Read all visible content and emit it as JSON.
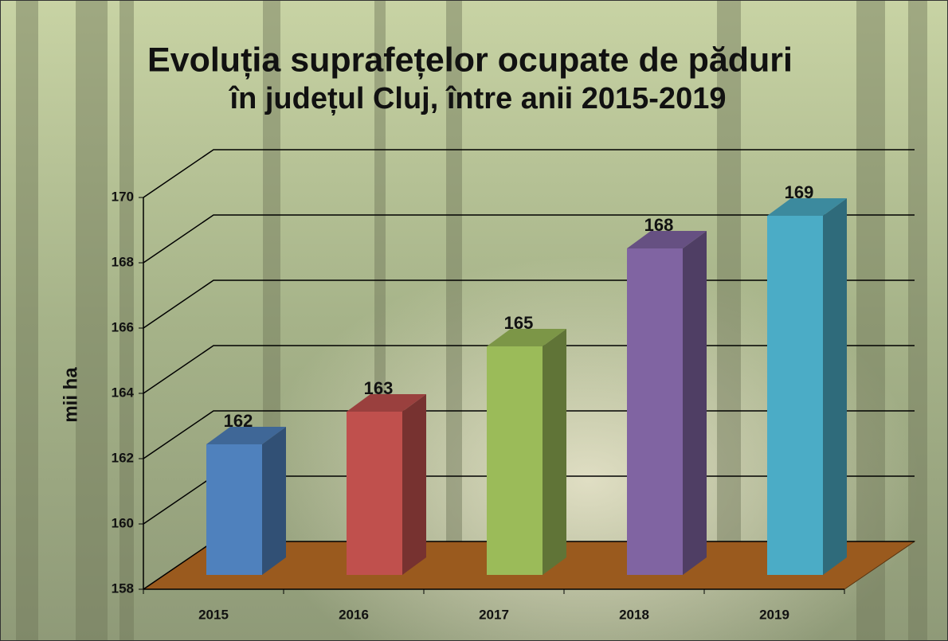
{
  "chart_data": {
    "type": "bar3d",
    "title": [
      "Evoluția suprafețelor ocupate de păduri",
      "în județul Cluj, între anii 2015-2019"
    ],
    "y_label": "mii ha",
    "categories": [
      "2015",
      "2016",
      "2017",
      "2018",
      "2019"
    ],
    "values": [
      162,
      163,
      165,
      168,
      169
    ],
    "colors": [
      "#4f81bd",
      "#c0504d",
      "#9bbb59",
      "#8064a2",
      "#4bacc6"
    ],
    "ylim": [
      158,
      170
    ],
    "yticks": [
      158,
      160,
      162,
      164,
      166,
      168,
      170
    ],
    "grid": true
  }
}
